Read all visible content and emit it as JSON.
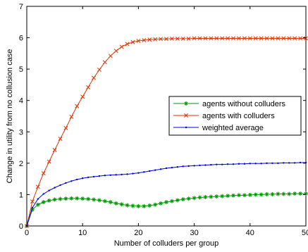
{
  "chart_data": {
    "type": "line",
    "title": "",
    "xlabel": "Number of colluders per group",
    "ylabel": "Change in utility from no collusion case",
    "xlim": [
      0,
      50
    ],
    "ylim": [
      0,
      7
    ],
    "xticks": [
      0,
      10,
      20,
      30,
      40,
      50
    ],
    "yticks": [
      0,
      1,
      2,
      3,
      4,
      5,
      6,
      7
    ],
    "grid": false,
    "legend_position": "center-right",
    "x": [
      0,
      1,
      2,
      3,
      4,
      5,
      6,
      7,
      8,
      9,
      10,
      11,
      12,
      13,
      14,
      15,
      16,
      17,
      18,
      19,
      20,
      21,
      22,
      23,
      24,
      25,
      26,
      27,
      28,
      29,
      30,
      31,
      32,
      33,
      34,
      35,
      36,
      37,
      38,
      39,
      40,
      41,
      42,
      43,
      44,
      45,
      46,
      47,
      48,
      49,
      50
    ],
    "series": [
      {
        "name": "agents without colluders",
        "color": "#009900",
        "marker": "asterisk",
        "values": [
          0,
          0.52,
          0.68,
          0.76,
          0.81,
          0.84,
          0.86,
          0.87,
          0.88,
          0.88,
          0.87,
          0.86,
          0.84,
          0.82,
          0.79,
          0.76,
          0.72,
          0.69,
          0.66,
          0.64,
          0.63,
          0.63,
          0.65,
          0.68,
          0.72,
          0.76,
          0.79,
          0.82,
          0.85,
          0.87,
          0.89,
          0.91,
          0.92,
          0.93,
          0.94,
          0.95,
          0.96,
          0.97,
          0.98,
          0.98,
          0.99,
          1.0,
          1.0,
          1.01,
          1.01,
          1.02,
          1.02,
          1.02,
          1.03,
          1.03,
          1.03
        ]
      },
      {
        "name": "agents with colluders",
        "color": "#dd3300",
        "marker": "x",
        "values": [
          0,
          0.78,
          1.25,
          1.68,
          2.05,
          2.42,
          2.78,
          3.12,
          3.48,
          3.82,
          4.12,
          4.42,
          4.72,
          4.98,
          5.22,
          5.42,
          5.58,
          5.71,
          5.8,
          5.86,
          5.9,
          5.92,
          5.94,
          5.95,
          5.96,
          5.96,
          5.97,
          5.97,
          5.97,
          5.97,
          5.98,
          5.98,
          5.98,
          5.98,
          5.98,
          5.98,
          5.98,
          5.98,
          5.98,
          5.98,
          5.98,
          5.98,
          5.98,
          5.98,
          5.98,
          5.98,
          5.98,
          5.98,
          5.98,
          5.98,
          5.98
        ]
      },
      {
        "name": "weighted average",
        "color": "#0000dd",
        "marker": "dot",
        "values": [
          0,
          0.58,
          0.86,
          1.02,
          1.13,
          1.22,
          1.3,
          1.37,
          1.43,
          1.48,
          1.52,
          1.55,
          1.57,
          1.59,
          1.61,
          1.62,
          1.63,
          1.64,
          1.65,
          1.67,
          1.69,
          1.72,
          1.75,
          1.78,
          1.81,
          1.84,
          1.86,
          1.88,
          1.9,
          1.91,
          1.92,
          1.93,
          1.94,
          1.95,
          1.96,
          1.96,
          1.97,
          1.97,
          1.98,
          1.98,
          1.99,
          1.99,
          1.99,
          2.0,
          2.0,
          2.0,
          2.01,
          2.01,
          2.01,
          2.02,
          2.02
        ]
      }
    ]
  }
}
